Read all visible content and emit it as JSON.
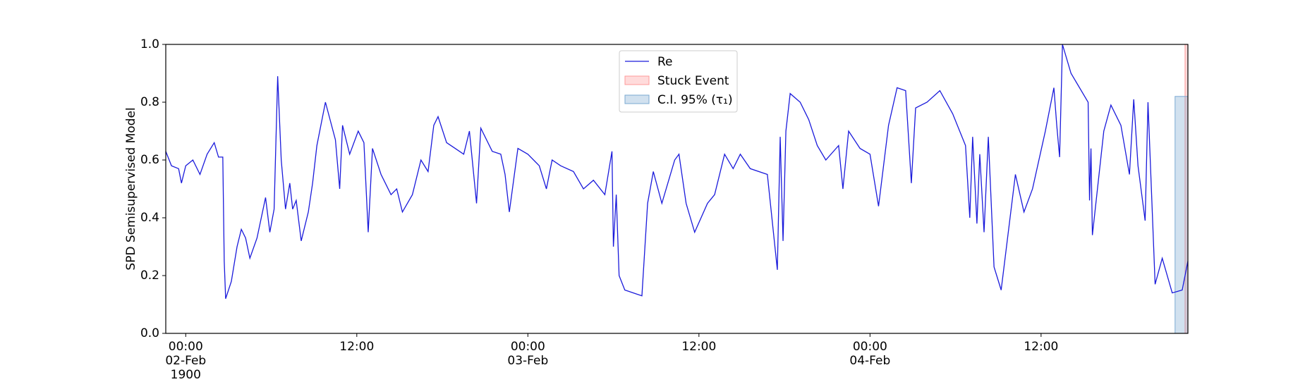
{
  "chart_data": {
    "type": "line",
    "y_label": "SPD Semisupervised Model",
    "x": [
      "1900-02-01 22:36",
      "1900-02-01 23:00",
      "1900-02-01 23:30",
      "1900-02-01 23:42",
      "1900-02-02 00:00",
      "1900-02-02 00:30",
      "1900-02-02 01:00",
      "1900-02-02 01:30",
      "1900-02-02 02:00",
      "1900-02-02 02:18",
      "1900-02-02 02:36",
      "1900-02-02 02:42",
      "1900-02-02 02:48",
      "1900-02-02 03:12",
      "1900-02-02 03:36",
      "1900-02-02 03:54",
      "1900-02-02 04:12",
      "1900-02-02 04:30",
      "1900-02-02 05:00",
      "1900-02-02 05:18",
      "1900-02-02 05:36",
      "1900-02-02 05:54",
      "1900-02-02 06:12",
      "1900-02-02 06:27",
      "1900-02-02 06:42",
      "1900-02-02 07:00",
      "1900-02-02 07:18",
      "1900-02-02 07:30",
      "1900-02-02 07:45",
      "1900-02-02 08:06",
      "1900-02-02 08:36",
      "1900-02-02 08:54",
      "1900-02-02 09:12",
      "1900-02-02 09:48",
      "1900-02-02 10:30",
      "1900-02-02 10:48",
      "1900-02-02 11:00",
      "1900-02-02 11:30",
      "1900-02-02 12:06",
      "1900-02-02 12:30",
      "1900-02-02 12:48",
      "1900-02-02 13:06",
      "1900-02-02 13:42",
      "1900-02-02 14:24",
      "1900-02-02 14:48",
      "1900-02-02 15:12",
      "1900-02-02 15:54",
      "1900-02-02 16:30",
      "1900-02-02 17:00",
      "1900-02-02 17:24",
      "1900-02-02 17:42",
      "1900-02-02 18:18",
      "1900-02-02 18:54",
      "1900-02-02 19:30",
      "1900-02-02 19:54",
      "1900-02-02 20:24",
      "1900-02-02 20:42",
      "1900-02-02 21:30",
      "1900-02-02 22:06",
      "1900-02-02 22:24",
      "1900-02-02 22:42",
      "1900-02-02 23:18",
      "1900-02-03 00:00",
      "1900-02-03 00:48",
      "1900-02-03 01:18",
      "1900-02-03 01:42",
      "1900-02-03 02:18",
      "1900-02-03 03:12",
      "1900-02-03 03:54",
      "1900-02-03 04:36",
      "1900-02-03 05:24",
      "1900-02-03 05:54",
      "1900-02-03 06:00",
      "1900-02-03 06:12",
      "1900-02-03 06:24",
      "1900-02-03 06:48",
      "1900-02-03 07:24",
      "1900-02-03 08:00",
      "1900-02-03 08:24",
      "1900-02-03 08:48",
      "1900-02-03 09:24",
      "1900-02-03 10:18",
      "1900-02-03 10:36",
      "1900-02-03 11:06",
      "1900-02-03 11:42",
      "1900-02-03 12:36",
      "1900-02-03 13:06",
      "1900-02-03 13:48",
      "1900-02-03 14:24",
      "1900-02-03 14:54",
      "1900-02-03 15:36",
      "1900-02-03 16:48",
      "1900-02-03 17:30",
      "1900-02-03 17:42",
      "1900-02-03 17:54",
      "1900-02-03 18:06",
      "1900-02-03 18:24",
      "1900-02-03 19:06",
      "1900-02-03 19:42",
      "1900-02-03 20:18",
      "1900-02-03 20:54",
      "1900-02-03 21:48",
      "1900-02-03 22:06",
      "1900-02-03 22:30",
      "1900-02-03 23:18",
      "1900-02-04 00:00",
      "1900-02-04 00:36",
      "1900-02-04 01:18",
      "1900-02-04 01:54",
      "1900-02-04 02:30",
      "1900-02-04 02:54",
      "1900-02-04 03:12",
      "1900-02-04 04:00",
      "1900-02-04 04:54",
      "1900-02-04 05:48",
      "1900-02-04 06:42",
      "1900-02-04 07:00",
      "1900-02-04 07:12",
      "1900-02-04 07:30",
      "1900-02-04 07:42",
      "1900-02-04 08:00",
      "1900-02-04 08:18",
      "1900-02-04 08:42",
      "1900-02-04 09:12",
      "1900-02-04 10:12",
      "1900-02-04 10:48",
      "1900-02-04 11:24",
      "1900-02-04 12:18",
      "1900-02-04 12:54",
      "1900-02-04 13:06",
      "1900-02-04 13:18",
      "1900-02-04 13:30",
      "1900-02-04 14:06",
      "1900-02-04 15:18",
      "1900-02-04 15:24",
      "1900-02-04 15:30",
      "1900-02-04 15:36",
      "1900-02-04 16:24",
      "1900-02-04 16:54",
      "1900-02-04 17:36",
      "1900-02-04 18:12",
      "1900-02-04 18:30",
      "1900-02-04 18:48",
      "1900-02-04 19:18",
      "1900-02-04 19:30",
      "1900-02-04 20:00",
      "1900-02-04 20:30",
      "1900-02-04 21:12",
      "1900-02-04 21:54",
      "1900-02-04 22:18"
    ],
    "series": [
      {
        "name": "Re",
        "color": "#1a1adb",
        "values": [
          0.63,
          0.58,
          0.57,
          0.52,
          0.58,
          0.6,
          0.55,
          0.62,
          0.66,
          0.61,
          0.61,
          0.25,
          0.12,
          0.18,
          0.3,
          0.36,
          0.33,
          0.26,
          0.33,
          0.4,
          0.47,
          0.35,
          0.43,
          0.89,
          0.6,
          0.43,
          0.52,
          0.43,
          0.46,
          0.32,
          0.42,
          0.52,
          0.65,
          0.8,
          0.67,
          0.5,
          0.72,
          0.62,
          0.7,
          0.66,
          0.35,
          0.64,
          0.55,
          0.48,
          0.5,
          0.42,
          0.48,
          0.6,
          0.56,
          0.72,
          0.75,
          0.66,
          0.64,
          0.62,
          0.7,
          0.45,
          0.71,
          0.63,
          0.62,
          0.55,
          0.42,
          0.64,
          0.62,
          0.58,
          0.5,
          0.6,
          0.58,
          0.56,
          0.5,
          0.53,
          0.48,
          0.63,
          0.3,
          0.48,
          0.2,
          0.15,
          0.14,
          0.13,
          0.45,
          0.56,
          0.45,
          0.6,
          0.62,
          0.45,
          0.35,
          0.45,
          0.48,
          0.62,
          0.57,
          0.62,
          0.57,
          0.55,
          0.22,
          0.68,
          0.32,
          0.7,
          0.83,
          0.8,
          0.74,
          0.65,
          0.6,
          0.65,
          0.5,
          0.7,
          0.64,
          0.62,
          0.44,
          0.72,
          0.85,
          0.84,
          0.52,
          0.78,
          0.8,
          0.84,
          0.76,
          0.65,
          0.4,
          0.68,
          0.38,
          0.62,
          0.35,
          0.68,
          0.23,
          0.15,
          0.55,
          0.42,
          0.5,
          0.7,
          0.85,
          0.72,
          0.61,
          1.0,
          0.9,
          0.8,
          0.46,
          0.64,
          0.34,
          0.7,
          0.79,
          0.72,
          0.55,
          0.81,
          0.58,
          0.39,
          0.8,
          0.17,
          0.26,
          0.14,
          0.15,
          0.25
        ]
      }
    ],
    "spans": [
      {
        "name": "Stuck Event",
        "color": "#ff9999",
        "x": [
          "1900-02-04 22:06",
          "1900-02-04 22:18"
        ]
      },
      {
        "name": "C.I. 95% (τ₁)",
        "color": "#7aa9d2",
        "x": [
          "1900-02-04 21:24",
          "1900-02-04 22:18"
        ],
        "y": [
          0,
          0.82
        ]
      }
    ],
    "xlim": [
      "1900-02-01 22:36",
      "1900-02-04 22:18"
    ],
    "xticks": [
      {
        "value": "1900-02-02 00:00",
        "label": "00:00\n02-Feb\n1900"
      },
      {
        "value": "1900-02-02 12:00",
        "label": "12:00"
      },
      {
        "value": "1900-02-03 00:00",
        "label": "00:00\n03-Feb"
      },
      {
        "value": "1900-02-03 12:00",
        "label": "12:00"
      },
      {
        "value": "1900-02-04 00:00",
        "label": "00:00\n04-Feb"
      },
      {
        "value": "1900-02-04 12:00",
        "label": "12:00"
      }
    ],
    "ylim": [
      0,
      1
    ],
    "yticks": [
      {
        "value": 0,
        "label": "0.0"
      },
      {
        "value": 0.2,
        "label": "0.2"
      },
      {
        "value": 0.4,
        "label": "0.4"
      },
      {
        "value": 0.6,
        "label": "0.6"
      },
      {
        "value": 0.8,
        "label": "0.8"
      },
      {
        "value": 1,
        "label": "1.0"
      }
    ],
    "legend": "upper center"
  }
}
